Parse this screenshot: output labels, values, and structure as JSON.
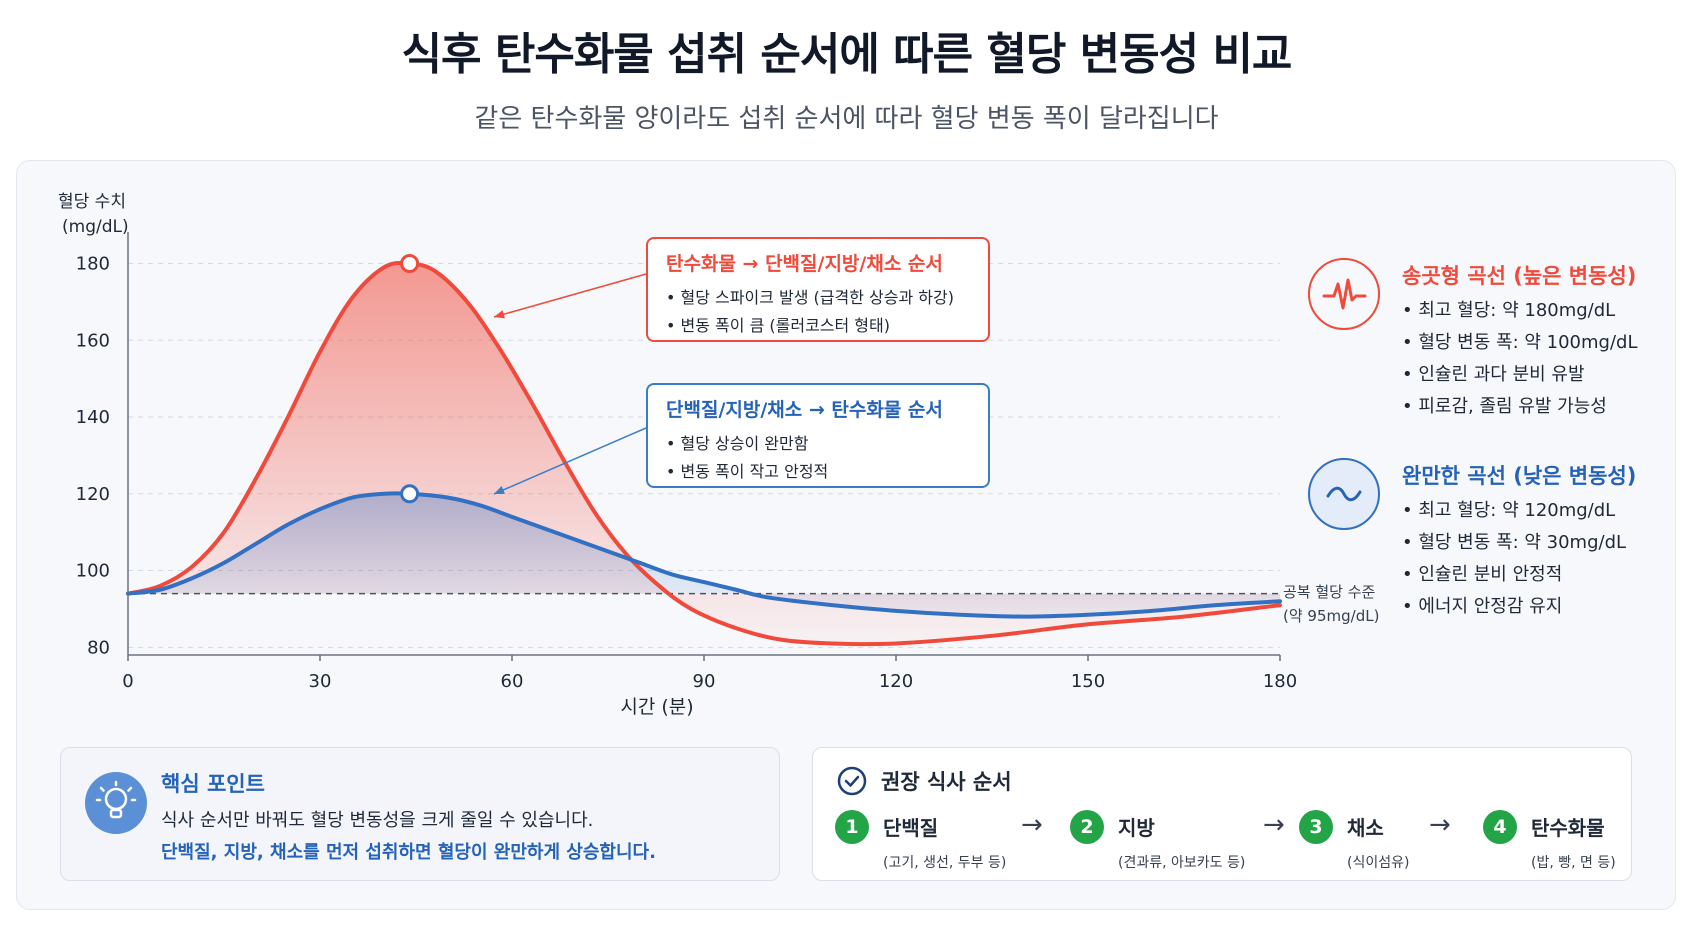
{
  "header": {
    "title": "식후 탄수화물 섭취 순서에 따른 혈당 변동성 비교",
    "subtitle": "같은 탄수화물 양이라도 섭취 순서에 따라 혈당 변동 폭이 달라집니다"
  },
  "chart_data": {
    "type": "line",
    "ylabel_line1": "혈당 수치",
    "ylabel_line2": "(mg/dL)",
    "xlabel": "시간 (분)",
    "xlim": [
      0,
      180
    ],
    "ylim": [
      78,
      183
    ],
    "xticks": [
      0,
      30,
      60,
      90,
      120,
      150,
      180
    ],
    "yticks": [
      80,
      100,
      120,
      140,
      160,
      180
    ],
    "grid": true,
    "series": [
      {
        "key": "red",
        "color": "#ef4a3b",
        "points": [
          [
            0,
            94
          ],
          [
            5,
            96
          ],
          [
            10,
            101
          ],
          [
            15,
            110
          ],
          [
            20,
            124
          ],
          [
            25,
            140
          ],
          [
            30,
            157
          ],
          [
            35,
            171
          ],
          [
            40,
            179
          ],
          [
            44,
            180
          ],
          [
            48,
            178
          ],
          [
            53,
            170
          ],
          [
            58,
            158
          ],
          [
            63,
            144
          ],
          [
            68,
            129
          ],
          [
            73,
            115
          ],
          [
            78,
            104
          ],
          [
            83,
            96
          ],
          [
            88,
            90
          ],
          [
            95,
            85
          ],
          [
            102,
            82
          ],
          [
            110,
            81
          ],
          [
            120,
            81
          ],
          [
            135,
            83
          ],
          [
            150,
            86
          ],
          [
            165,
            88
          ],
          [
            180,
            91
          ]
        ],
        "peak": [
          44,
          180
        ]
      },
      {
        "key": "blue",
        "color": "#3270c4",
        "points": [
          [
            0,
            94
          ],
          [
            5,
            95
          ],
          [
            10,
            98
          ],
          [
            15,
            102
          ],
          [
            20,
            107
          ],
          [
            25,
            112
          ],
          [
            30,
            116
          ],
          [
            35,
            119
          ],
          [
            40,
            120
          ],
          [
            44,
            120
          ],
          [
            50,
            119
          ],
          [
            55,
            117
          ],
          [
            60,
            114
          ],
          [
            65,
            111
          ],
          [
            70,
            108
          ],
          [
            75,
            105
          ],
          [
            80,
            102
          ],
          [
            85,
            99
          ],
          [
            90,
            97
          ],
          [
            95,
            95
          ],
          [
            100,
            93
          ],
          [
            110,
            91
          ],
          [
            120,
            89.5
          ],
          [
            130,
            88.5
          ],
          [
            140,
            88
          ],
          [
            150,
            88.5
          ],
          [
            160,
            89.5
          ],
          [
            170,
            91
          ],
          [
            180,
            92
          ]
        ],
        "peak": [
          44,
          120
        ]
      }
    ],
    "baseline": {
      "value": 94,
      "label_line1": "공복 혈당 수준",
      "label_line2": "(약 95mg/dL)"
    }
  },
  "callouts": {
    "red": {
      "title": "탄수화물 → 단백질/지방/채소 순서",
      "lines": [
        "• 혈당 스파이크 발생 (급격한 상승과 하강)",
        "• 변동 폭이 큼 (롤러코스터 형태)"
      ]
    },
    "blue": {
      "title": "단백질/지방/채소 → 탄수화물 순서",
      "lines": [
        "• 혈당 상승이 완만함",
        "• 변동 폭이 작고 안정적"
      ]
    }
  },
  "side": {
    "spike": {
      "title": "송곳형 곡선 (높은 변동성)",
      "color": "#ef4a3b",
      "icon": "heartbeat-icon",
      "lines": [
        "• 최고 혈당: 약 180mg/dL",
        "• 혈당 변동 폭: 약 100mg/dL",
        "• 인슐린 과다 분비 유발",
        "• 피로감, 졸림 유발 가능성"
      ]
    },
    "gentle": {
      "title": "완만한 곡선 (낮은 변동성)",
      "color": "#2563b8",
      "icon": "wave-icon",
      "lines": [
        "• 최고 혈당: 약 120mg/dL",
        "• 혈당 변동 폭: 약 30mg/dL",
        "• 인슐린 분비 안정적",
        "• 에너지 안정감 유지"
      ]
    }
  },
  "keypoint": {
    "title": "핵심 포인트",
    "line1": "식사 순서만 바꿔도 혈당 변동성을 크게 줄일 수 있습니다.",
    "line2": "단백질, 지방, 채소를 먼저 섭취하면 혈당이 완만하게 상승합니다."
  },
  "recommended": {
    "title": "권장 식사 순서",
    "arrow": "→",
    "steps": [
      {
        "num": "1",
        "name": "단백질",
        "examples": "(고기, 생선, 두부 등)"
      },
      {
        "num": "2",
        "name": "지방",
        "examples": "(견과류, 아보카도 등)"
      },
      {
        "num": "3",
        "name": "채소",
        "examples": "(식이섬유)"
      },
      {
        "num": "4",
        "name": "탄수화물",
        "examples": "(밥, 빵, 면 등)"
      }
    ]
  }
}
